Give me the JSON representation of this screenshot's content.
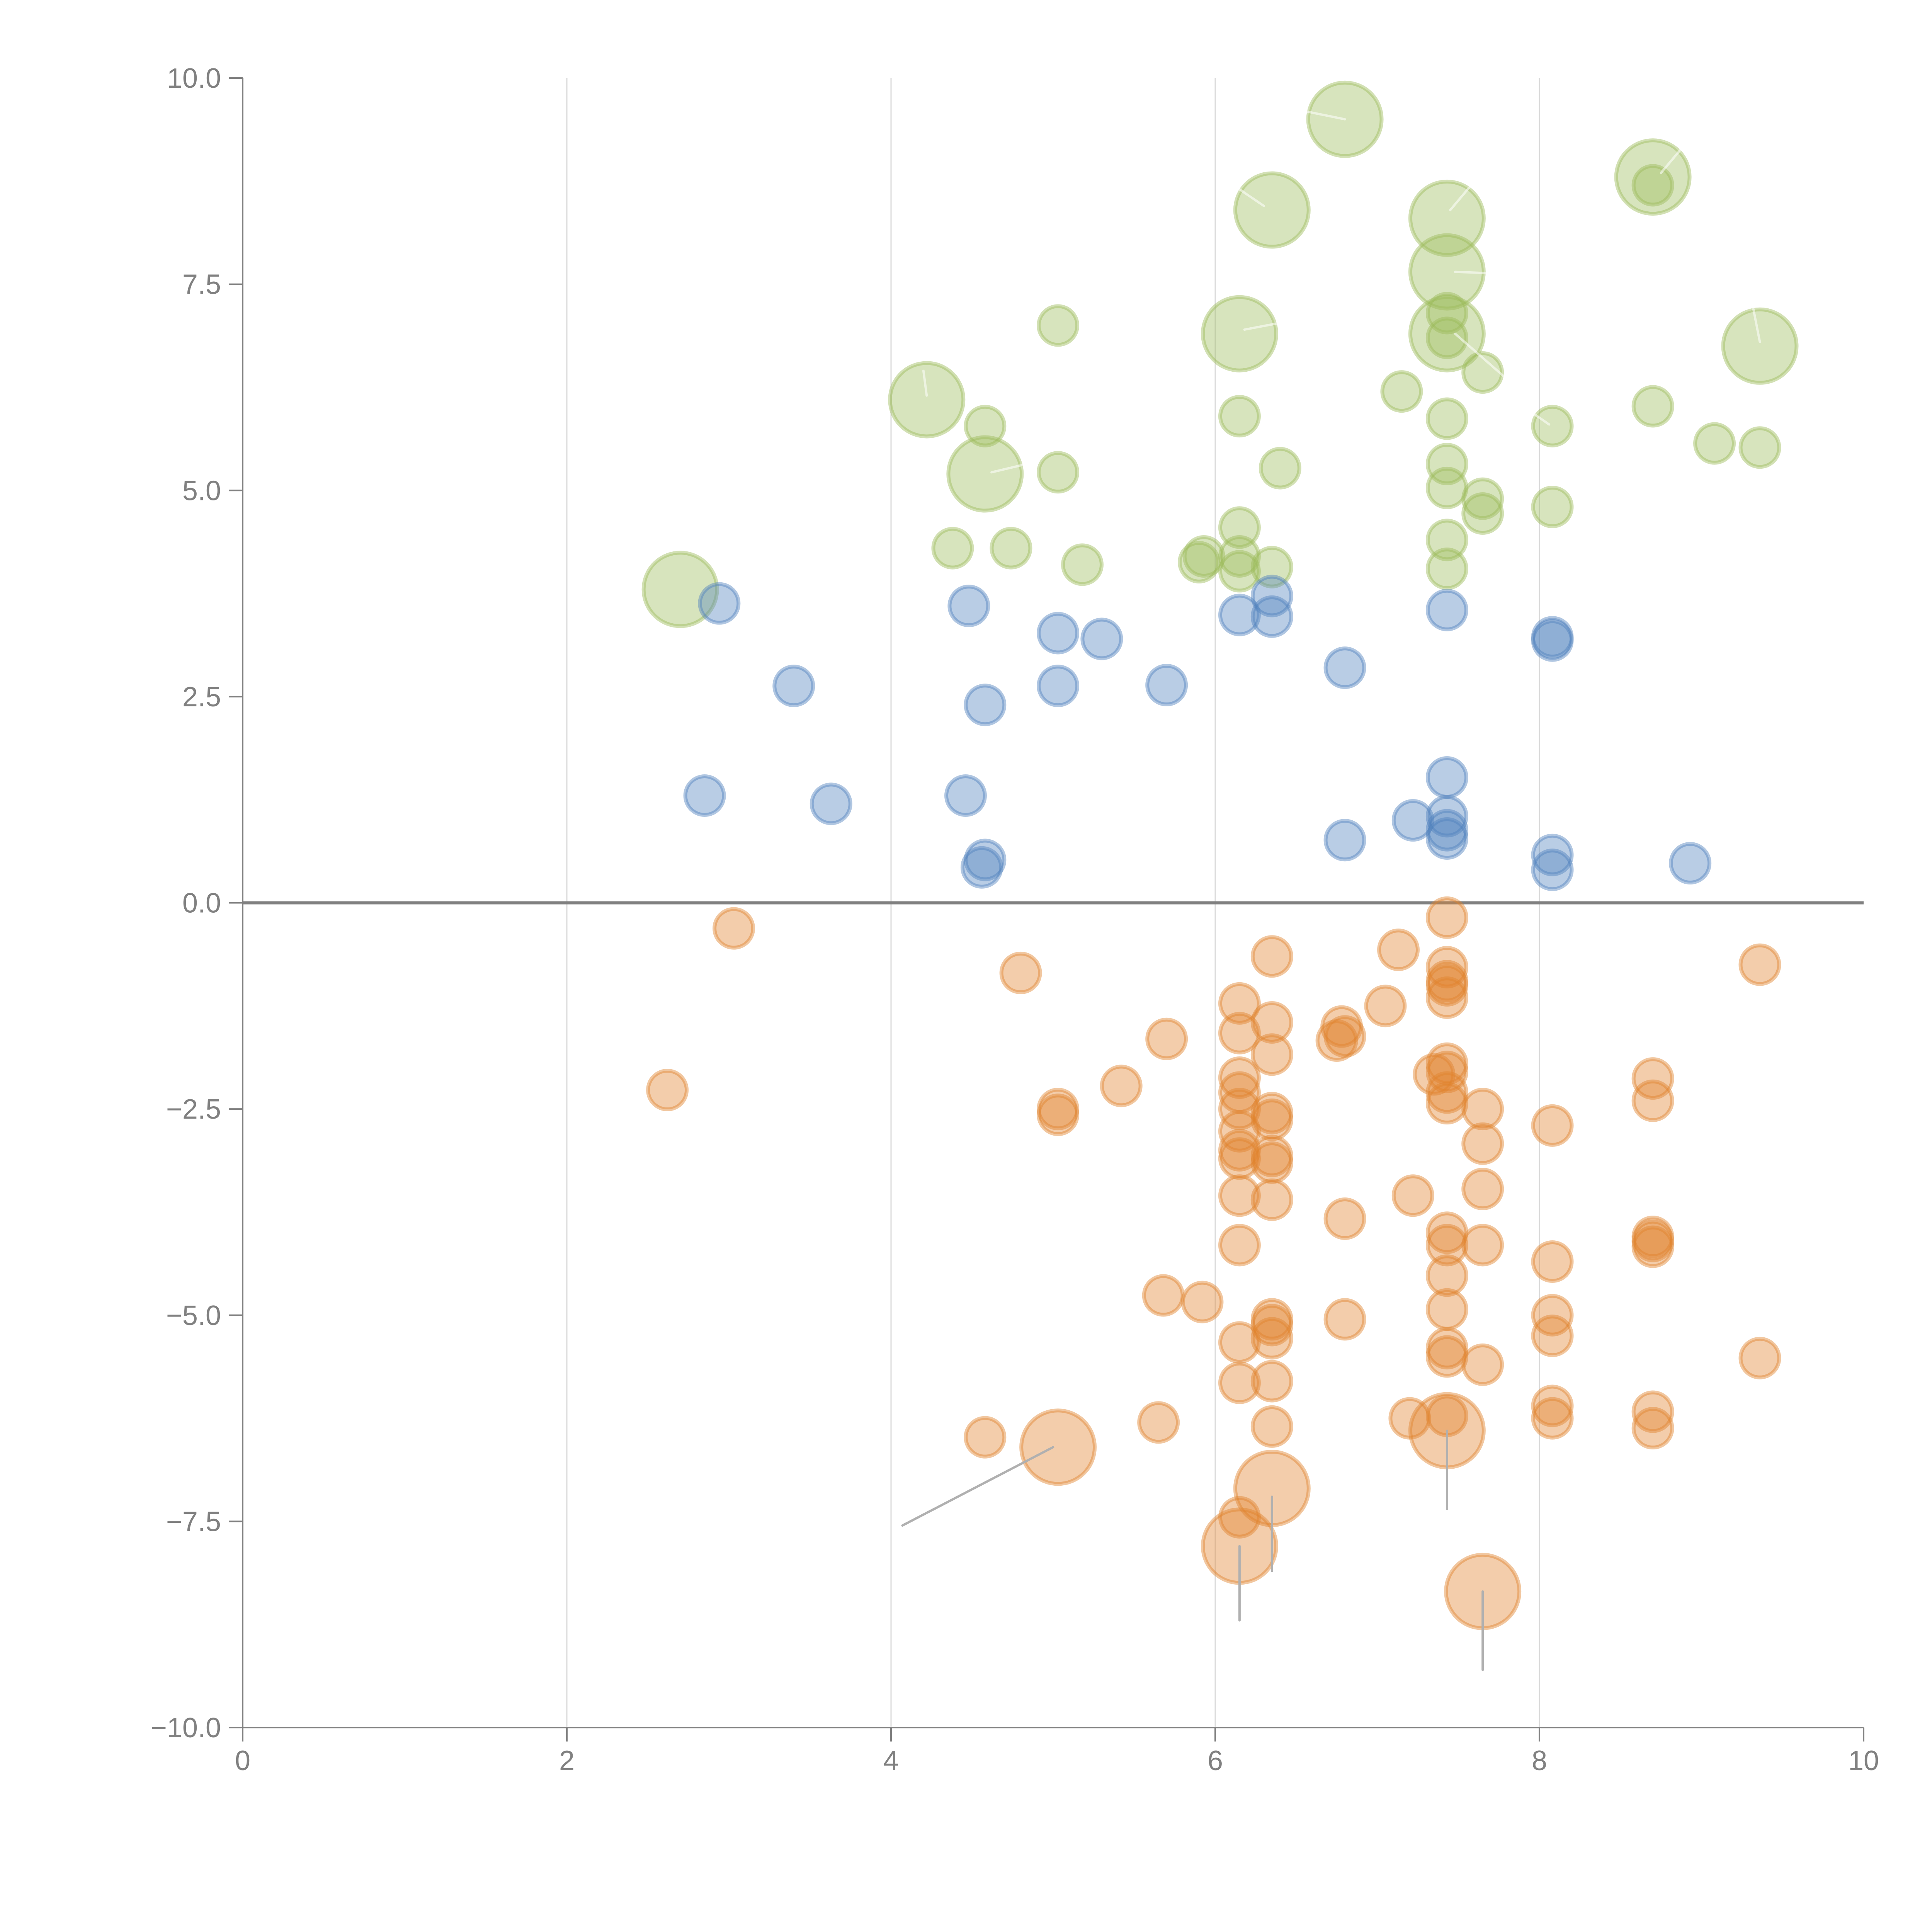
{
  "chart_data": {
    "type": "scatter",
    "title": "",
    "xlabel": "",
    "ylabel": "",
    "xlim": [
      0,
      10
    ],
    "ylim": [
      -10,
      10
    ],
    "x_ticks": [
      0,
      2,
      4,
      6,
      8,
      10
    ],
    "x_tick_labels": [
      "0",
      "2",
      "4",
      "6",
      "8",
      "10"
    ],
    "y_ticks": [
      10,
      7.5,
      5,
      2.5,
      0,
      -2.5,
      -5,
      -7.5,
      -10
    ],
    "y_tick_labels": [
      "10.0",
      "7.5",
      "5.0",
      "2.5",
      "0.0",
      "−2.5",
      "−5.0",
      "−7.5",
      "−10.0"
    ],
    "grid": "vertical-only",
    "zero_line": true,
    "legend": "none",
    "series": [
      {
        "name": "green",
        "color": "#9bbb59",
        "points": [
          [
            2.7,
            3.8,
            2
          ],
          [
            4.22,
            6.1,
            2
          ],
          [
            4.58,
            5.2,
            2
          ],
          [
            6.15,
            6.9,
            2
          ],
          [
            6.35,
            8.4,
            2
          ],
          [
            6.8,
            9.5,
            2
          ],
          [
            7.43,
            8.3,
            2
          ],
          [
            7.43,
            7.65,
            2
          ],
          [
            7.43,
            6.9,
            2
          ],
          [
            8.7,
            8.8,
            2
          ],
          [
            9.36,
            6.75,
            2
          ],
          [
            8.7,
            8.7,
            1
          ],
          [
            7.43,
            7.15,
            1
          ],
          [
            7.43,
            6.85,
            1
          ],
          [
            7.65,
            6.43,
            1
          ],
          [
            7.15,
            6.2,
            1
          ],
          [
            5.03,
            7.0,
            1
          ],
          [
            4.58,
            5.78,
            1
          ],
          [
            5.03,
            5.22,
            1
          ],
          [
            6.15,
            5.9,
            1
          ],
          [
            6.4,
            5.27,
            1
          ],
          [
            7.43,
            5.87,
            1
          ],
          [
            8.08,
            5.78,
            1
          ],
          [
            8.7,
            6.02,
            1
          ],
          [
            9.08,
            5.57,
            1
          ],
          [
            9.36,
            5.52,
            1
          ],
          [
            7.43,
            5.32,
            1
          ],
          [
            7.43,
            5.03,
            1
          ],
          [
            7.65,
            4.9,
            1
          ],
          [
            7.65,
            4.72,
            1
          ],
          [
            8.08,
            4.8,
            1
          ],
          [
            7.43,
            4.4,
            1
          ],
          [
            7.43,
            4.05,
            1
          ],
          [
            6.15,
            4.55,
            1
          ],
          [
            6.15,
            4.2,
            1
          ],
          [
            6.15,
            4.02,
            1
          ],
          [
            5.93,
            4.2,
            1
          ],
          [
            5.9,
            4.13,
            1
          ],
          [
            6.35,
            4.07,
            1
          ],
          [
            5.18,
            4.1,
            1
          ],
          [
            4.38,
            4.3,
            1
          ],
          [
            4.74,
            4.3,
            1
          ]
        ]
      },
      {
        "name": "blue",
        "color": "#4f81bd",
        "points": [
          [
            2.94,
            3.63,
            1
          ],
          [
            4.48,
            3.6,
            1
          ],
          [
            5.03,
            3.27,
            1
          ],
          [
            5.3,
            3.2,
            1
          ],
          [
            6.15,
            3.49,
            1
          ],
          [
            6.35,
            3.72,
            1
          ],
          [
            6.35,
            3.47,
            1
          ],
          [
            7.43,
            3.55,
            1
          ],
          [
            8.08,
            3.22,
            1
          ],
          [
            8.08,
            3.18,
            1
          ],
          [
            3.4,
            2.63,
            1
          ],
          [
            4.58,
            2.4,
            1
          ],
          [
            5.03,
            2.63,
            1
          ],
          [
            5.7,
            2.64,
            1
          ],
          [
            6.8,
            2.85,
            1
          ],
          [
            2.85,
            1.3,
            1
          ],
          [
            3.63,
            1.2,
            1
          ],
          [
            4.46,
            1.3,
            1
          ],
          [
            4.58,
            0.52,
            1
          ],
          [
            4.56,
            0.43,
            1
          ],
          [
            7.43,
            1.52,
            1
          ],
          [
            7.22,
            1.0,
            1
          ],
          [
            7.43,
            1.05,
            1
          ],
          [
            7.43,
            0.88,
            1
          ],
          [
            7.43,
            0.78,
            1
          ],
          [
            6.8,
            0.76,
            1
          ],
          [
            8.08,
            0.58,
            1
          ],
          [
            8.08,
            0.4,
            1
          ],
          [
            8.93,
            0.48,
            1
          ]
        ]
      },
      {
        "name": "orange",
        "color": "#e0822c",
        "points": [
          [
            3.03,
            -0.31,
            1
          ],
          [
            2.62,
            -2.27,
            1
          ],
          [
            4.8,
            -0.85,
            1
          ],
          [
            5.03,
            -2.5,
            1
          ],
          [
            5.03,
            -2.57,
            1
          ],
          [
            5.42,
            -2.22,
            1
          ],
          [
            5.7,
            -1.65,
            1
          ],
          [
            6.15,
            -1.22,
            1
          ],
          [
            6.15,
            -1.58,
            1
          ],
          [
            6.35,
            -0.65,
            1
          ],
          [
            6.35,
            -1.45,
            1
          ],
          [
            6.35,
            -1.84,
            1
          ],
          [
            6.78,
            -1.5,
            1
          ],
          [
            6.75,
            -1.67,
            1
          ],
          [
            6.8,
            -1.62,
            1
          ],
          [
            7.05,
            -1.25,
            1
          ],
          [
            7.13,
            -0.57,
            1
          ],
          [
            7.43,
            -0.18,
            1
          ],
          [
            7.43,
            -0.78,
            1
          ],
          [
            7.43,
            -0.95,
            1
          ],
          [
            7.43,
            -1.0,
            1
          ],
          [
            7.43,
            -1.15,
            1
          ],
          [
            6.15,
            -2.12,
            1
          ],
          [
            6.15,
            -2.3,
            1
          ],
          [
            6.15,
            -2.5,
            1
          ],
          [
            6.15,
            -2.77,
            1
          ],
          [
            6.15,
            -3.0,
            1
          ],
          [
            6.15,
            -3.1,
            1
          ],
          [
            6.15,
            -3.55,
            1
          ],
          [
            6.15,
            -4.15,
            1
          ],
          [
            6.35,
            -2.55,
            1
          ],
          [
            6.35,
            -2.63,
            1
          ],
          [
            6.35,
            -3.07,
            1
          ],
          [
            6.35,
            -3.15,
            1
          ],
          [
            6.35,
            -3.6,
            1
          ],
          [
            7.35,
            -2.08,
            1
          ],
          [
            7.43,
            -1.95,
            1
          ],
          [
            7.43,
            -2.05,
            1
          ],
          [
            7.43,
            -2.3,
            1
          ],
          [
            7.43,
            -2.43,
            1
          ],
          [
            7.65,
            -2.5,
            1
          ],
          [
            7.65,
            -2.92,
            1
          ],
          [
            7.65,
            -3.47,
            1
          ],
          [
            7.22,
            -3.55,
            1
          ],
          [
            6.8,
            -3.83,
            1
          ],
          [
            7.43,
            -4.0,
            1
          ],
          [
            7.43,
            -4.15,
            1
          ],
          [
            7.65,
            -4.15,
            1
          ],
          [
            8.08,
            -2.7,
            1
          ],
          [
            8.08,
            -4.35,
            1
          ],
          [
            8.7,
            -2.13,
            1
          ],
          [
            8.7,
            -2.4,
            1
          ],
          [
            8.7,
            -4.05,
            1
          ],
          [
            8.7,
            -4.1,
            1
          ],
          [
            8.7,
            -4.17,
            1
          ],
          [
            9.36,
            -0.75,
            1
          ],
          [
            9.36,
            -5.52,
            1
          ],
          [
            5.68,
            -4.76,
            1
          ],
          [
            5.92,
            -4.84,
            1
          ],
          [
            6.15,
            -5.33,
            1
          ],
          [
            6.35,
            -5.05,
            1
          ],
          [
            6.35,
            -5.12,
            1
          ],
          [
            6.35,
            -5.28,
            1
          ],
          [
            6.8,
            -5.05,
            1
          ],
          [
            7.43,
            -4.52,
            1
          ],
          [
            7.43,
            -4.93,
            1
          ],
          [
            7.43,
            -5.4,
            1
          ],
          [
            7.43,
            -5.5,
            1
          ],
          [
            7.65,
            -5.6,
            1
          ],
          [
            8.08,
            -5.0,
            1
          ],
          [
            8.08,
            -5.25,
            1
          ],
          [
            6.15,
            -5.82,
            1
          ],
          [
            6.35,
            -5.8,
            1
          ],
          [
            4.58,
            -6.48,
            1
          ],
          [
            5.65,
            -6.3,
            1
          ],
          [
            6.35,
            -6.35,
            1
          ],
          [
            7.2,
            -6.25,
            1
          ],
          [
            7.43,
            -6.22,
            1
          ],
          [
            8.08,
            -6.1,
            1
          ],
          [
            8.08,
            -6.25,
            1
          ],
          [
            8.7,
            -6.17,
            1
          ],
          [
            8.7,
            -6.37,
            1
          ],
          [
            6.15,
            -7.45,
            1
          ],
          [
            5.03,
            -6.6,
            2
          ],
          [
            6.35,
            -7.1,
            2
          ],
          [
            6.15,
            -7.8,
            2
          ],
          [
            7.43,
            -6.4,
            2
          ],
          [
            7.65,
            -8.35,
            2
          ]
        ]
      }
    ],
    "point_size_note": "third value = size class (1 = small, 2 = large bubble)",
    "annotations": [
      {
        "kind": "leader-line",
        "color": "gray",
        "from": [
          5.0,
          -6.6
        ],
        "to": [
          4.07,
          -7.55
        ]
      },
      {
        "kind": "leader-line",
        "color": "gray",
        "from": [
          6.15,
          -7.8
        ],
        "to": [
          6.15,
          -8.7
        ]
      },
      {
        "kind": "leader-line",
        "color": "gray",
        "from": [
          6.35,
          -7.2
        ],
        "to": [
          6.35,
          -8.1
        ]
      },
      {
        "kind": "leader-line",
        "color": "gray",
        "from": [
          7.43,
          -6.4
        ],
        "to": [
          7.43,
          -7.35
        ]
      },
      {
        "kind": "leader-line",
        "color": "gray",
        "from": [
          7.65,
          -8.35
        ],
        "to": [
          7.65,
          -9.3
        ]
      },
      {
        "kind": "leader-line",
        "color": "white",
        "from": [
          6.8,
          9.5
        ],
        "to": [
          6.55,
          9.6
        ]
      },
      {
        "kind": "leader-line",
        "color": "white",
        "from": [
          6.3,
          8.45
        ],
        "to": [
          6.15,
          8.65
        ]
      },
      {
        "kind": "leader-line",
        "color": "white",
        "from": [
          7.45,
          8.4
        ],
        "to": [
          7.6,
          8.75
        ]
      },
      {
        "kind": "leader-line",
        "color": "white",
        "from": [
          7.48,
          7.65
        ],
        "to": [
          7.75,
          7.63
        ]
      },
      {
        "kind": "leader-line",
        "color": "white",
        "from": [
          7.48,
          6.9
        ],
        "to": [
          7.8,
          6.35
        ]
      },
      {
        "kind": "leader-line",
        "color": "white",
        "from": [
          8.75,
          8.85
        ],
        "to": [
          8.9,
          9.2
        ]
      },
      {
        "kind": "leader-line",
        "color": "white",
        "from": [
          9.36,
          6.8
        ],
        "to": [
          9.32,
          7.2
        ]
      },
      {
        "kind": "leader-line",
        "color": "white",
        "from": [
          6.18,
          6.95
        ],
        "to": [
          6.45,
          7.05
        ]
      },
      {
        "kind": "leader-line",
        "color": "white",
        "from": [
          4.22,
          6.15
        ],
        "to": [
          4.2,
          6.45
        ]
      },
      {
        "kind": "leader-line",
        "color": "white",
        "from": [
          4.62,
          5.22
        ],
        "to": [
          4.9,
          5.35
        ]
      },
      {
        "kind": "leader-line",
        "color": "white",
        "from": [
          8.06,
          5.8
        ],
        "to": [
          7.95,
          5.95
        ]
      }
    ]
  }
}
